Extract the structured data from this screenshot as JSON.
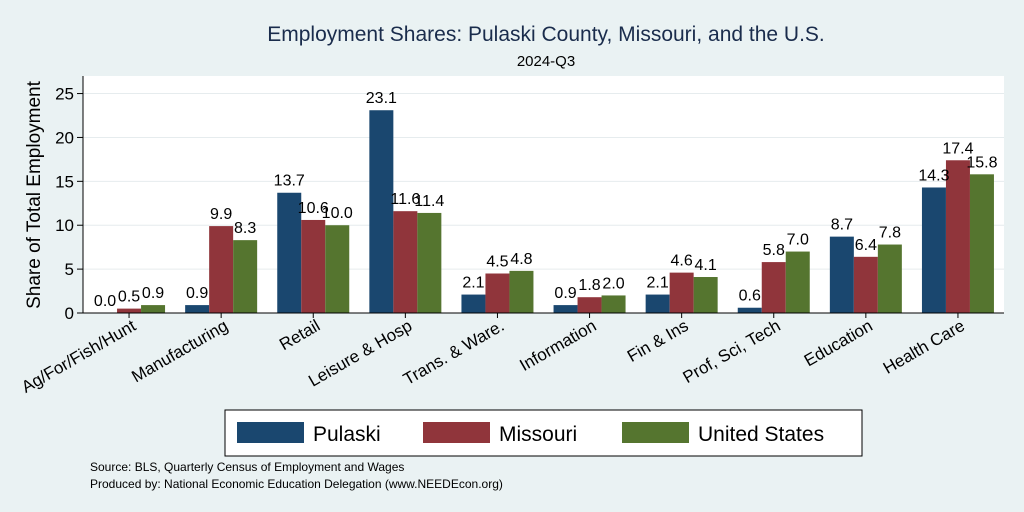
{
  "chart_data": {
    "type": "bar",
    "title": "Employment Shares: Pulaski County, Missouri, and the U.S.",
    "subtitle": "2024-Q3",
    "ylabel": "Share of Total Employment",
    "xlabel": "",
    "ylim": [
      0,
      27
    ],
    "yticks": [
      0,
      5,
      10,
      15,
      20,
      25
    ],
    "grid": true,
    "legend_position": "bottom",
    "categories": [
      "Ag/For/Fish/Hunt",
      "Manufacturing",
      "Retail",
      "Leisure & Hosp",
      "Trans. & Ware.",
      "Information",
      "Fin & Ins",
      "Prof, Sci, Tech",
      "Education",
      "Health Care"
    ],
    "series": [
      {
        "name": "Pulaski",
        "color": "#1a476f",
        "values": [
          0.0,
          0.9,
          13.7,
          23.1,
          2.1,
          0.9,
          2.1,
          0.6,
          8.7,
          14.3
        ],
        "labels": [
          "0.0",
          "0.9",
          "13.7",
          "23.1",
          "2.1",
          "0.9",
          "2.1",
          "0.6",
          "8.7",
          "14.3"
        ]
      },
      {
        "name": "Missouri",
        "color": "#90353b",
        "values": [
          0.5,
          9.9,
          10.6,
          11.6,
          4.5,
          1.8,
          4.6,
          5.8,
          6.4,
          17.4
        ],
        "labels": [
          "0.5",
          "9.9",
          "10.6",
          "11.6",
          "4.5",
          "1.8",
          "4.6",
          "5.8",
          "6.4",
          "17.4"
        ]
      },
      {
        "name": "United States",
        "color": "#55752f",
        "values": [
          0.9,
          8.3,
          10.0,
          11.4,
          4.8,
          2.0,
          4.1,
          7.0,
          7.8,
          15.8
        ],
        "labels": [
          "0.9",
          "8.3",
          "10.0",
          "11.4",
          "4.8",
          "2.0",
          "4.1",
          "7.0",
          "7.8",
          "15.8"
        ]
      }
    ]
  },
  "notes": {
    "source": "Source: BLS, Quarterly Census of Employment and Wages",
    "produced_by": "Produced by: National Economic Education Delegation (www.NEEDEcon.org)"
  }
}
